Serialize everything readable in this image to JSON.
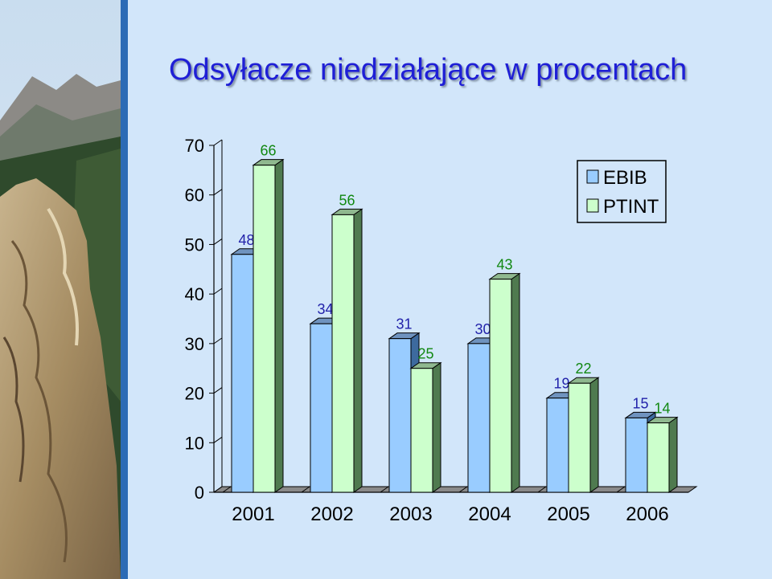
{
  "slide": {
    "title": "Odsyłacze niedziałające w procentach"
  },
  "colors": {
    "background": "#d2e6fa",
    "title": "#1f1fd6",
    "ebib_fill": "#99ccff",
    "ptint_fill": "#ccffcc",
    "ebib_label": "#2222aa",
    "ptint_label": "#118811",
    "accent_bar": "#2c6bb5"
  },
  "chart_data": {
    "type": "bar",
    "categories": [
      "2001",
      "2002",
      "2003",
      "2004",
      "2005",
      "2006"
    ],
    "series": [
      {
        "name": "EBIB",
        "values": [
          48,
          34,
          31,
          30,
          19,
          15
        ]
      },
      {
        "name": "PTINT",
        "values": [
          66,
          56,
          25,
          43,
          22,
          14
        ]
      }
    ],
    "yticks": [
      "0",
      "10",
      "20",
      "30",
      "40",
      "50",
      "60",
      "70"
    ],
    "ylim": [
      0,
      70
    ],
    "grid": false,
    "legend_position": "top-right",
    "three_d": true
  }
}
